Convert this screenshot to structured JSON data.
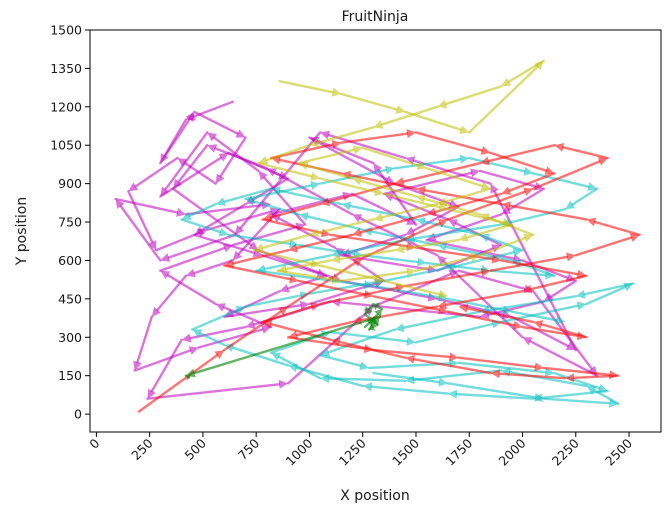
{
  "chart_data": {
    "type": "line",
    "title": "FruitNinja",
    "xlabel": "X position",
    "ylabel": "Y position",
    "xlim": [
      -30,
      2650
    ],
    "ylim": [
      -70,
      1500
    ],
    "x_ticks": [
      0,
      250,
      500,
      750,
      1000,
      1250,
      1500,
      1750,
      2000,
      2250,
      2500
    ],
    "y_ticks": [
      0,
      150,
      300,
      450,
      600,
      750,
      900,
      1050,
      1200,
      1350,
      1500
    ],
    "grid": false,
    "legend": "none",
    "arrows": true,
    "series": [
      {
        "color": "#bf00bf",
        "opacity": 0.55,
        "x": [
          640,
          420,
          300,
          460,
          700,
          560,
          380,
          150,
          280,
          520,
          860,
          640,
          420,
          260,
          180,
          480,
          820,
          560,
          300,
          640,
          980,
          760,
          520,
          300,
          620,
          900,
          700,
          460,
          780,
          1080,
          860,
          600,
          1000,
          1350,
          1120,
          820,
          1200,
          1500,
          1300,
          1000,
          1400,
          1700,
          1450,
          1150,
          1600,
          1900,
          1650,
          1350,
          1800,
          2100,
          1900,
          1550,
          2000,
          2250,
          2100,
          1800,
          1100,
          700,
          400,
          240,
          900,
          1300,
          1700,
          2050,
          2350,
          2000,
          1600,
          1200,
          800,
          520,
          360,
          760,
          1150,
          1600,
          1950,
          2250,
          1850,
          1450,
          1050,
          650,
          300,
          90,
          420,
          820
        ],
        "y": [
          1220,
          1150,
          980,
          1180,
          1080,
          900,
          1000,
          870,
          640,
          720,
          800,
          600,
          540,
          380,
          170,
          260,
          340,
          430,
          560,
          660,
          740,
          950,
          1100,
          850,
          1020,
          920,
          820,
          700,
          620,
          540,
          480,
          380,
          430,
          520,
          650,
          780,
          860,
          740,
          980,
          1080,
          900,
          810,
          700,
          620,
          560,
          660,
          760,
          860,
          950,
          880,
          780,
          680,
          600,
          520,
          440,
          380,
          440,
          340,
          290,
          60,
          120,
          420,
          560,
          480,
          150,
          300,
          620,
          780,
          960,
          1050,
          880,
          640,
          520,
          450,
          380,
          250,
          900,
          1000,
          1100,
          700,
          600,
          840,
          780,
          820
        ]
      },
      {
        "color": "#00bfbf",
        "opacity": 0.55,
        "x": [
          1300,
          1650,
          2100,
          2450,
          2300,
          1900,
          1450,
          1050,
          820,
          1100,
          1500,
          1900,
          2300,
          2520,
          2250,
          1800,
          1400,
          1050,
          1280,
          1700,
          2150,
          2400,
          2050,
          1650,
          1250,
          900,
          600,
          450,
          700,
          1000,
          1350,
          1700,
          2000,
          1800,
          1500,
          1150,
          820,
          560,
          400,
          620,
          950,
          1250,
          1550,
          1850,
          2150,
          1950,
          1600,
          1250,
          950,
          700,
          1050,
          1400,
          1750,
          2050,
          2350,
          2200,
          1900,
          1450,
          1100,
          750,
          1300,
          1650,
          1950,
          2200
        ],
        "y": [
          160,
          120,
          60,
          40,
          110,
          170,
          130,
          140,
          240,
          320,
          280,
          360,
          430,
          510,
          460,
          400,
          330,
          230,
          180,
          200,
          160,
          90,
          60,
          80,
          110,
          190,
          270,
          330,
          420,
          470,
          520,
          580,
          640,
          700,
          760,
          820,
          880,
          820,
          760,
          700,
          660,
          620,
          590,
          560,
          540,
          600,
          660,
          720,
          780,
          840,
          900,
          960,
          1000,
          940,
          880,
          800,
          740,
          680,
          620,
          560,
          500,
          450,
          400,
          360
        ]
      },
      {
        "color": "#ff0000",
        "opacity": 0.55,
        "x": [
          200,
          600,
          900,
          1250,
          1650,
          2050,
          2400,
          2150,
          1800,
          1400,
          1050,
          780,
          1100,
          1500,
          1900,
          2300,
          2000,
          1600,
          1200,
          900,
          1300,
          1700,
          2100,
          2450,
          2200,
          1850,
          1450,
          1100,
          780,
          1050,
          1450,
          1850,
          2250,
          2550,
          2300,
          1900,
          1500,
          1150,
          820,
          1150,
          1500,
          1850,
          2150,
          1900,
          1550,
          1200,
          900,
          600,
          950,
          1300,
          1650,
          2000,
          2300,
          2050,
          1700
        ],
        "y": [
          10,
          250,
          420,
          610,
          760,
          880,
          1000,
          1050,
          980,
          900,
          820,
          760,
          700,
          650,
          600,
          540,
          480,
          420,
          360,
          300,
          250,
          220,
          180,
          150,
          140,
          160,
          220,
          290,
          360,
          430,
          500,
          560,
          620,
          700,
          760,
          820,
          880,
          940,
          1000,
          1060,
          1100,
          1020,
          940,
          860,
          780,
          700,
          640,
          580,
          520,
          460,
          400,
          340,
          300,
          360,
          420
        ]
      },
      {
        "color": "#bfbf00",
        "opacity": 0.55,
        "x": [
          860,
          1150,
          1450,
          1750,
          2100,
          1900,
          1600,
          1300,
          1000,
          760,
          1050,
          1350,
          1650,
          1950,
          1700,
          1400,
          1100,
          850,
          1150,
          1500,
          1800,
          2050,
          1800,
          1500,
          1200,
          950,
          1250,
          1550,
          1850,
          1600,
          1300,
          1000,
          740,
          1050,
          1350,
          1650
        ],
        "y": [
          1300,
          1250,
          1180,
          1100,
          1380,
          1280,
          1200,
          1120,
          1050,
          980,
          920,
          860,
          800,
          740,
          680,
          640,
          600,
          560,
          520,
          560,
          620,
          700,
          780,
          850,
          920,
          980,
          1040,
          960,
          880,
          820,
          760,
          700,
          640,
          580,
          520,
          460
        ]
      },
      {
        "color": "#008000",
        "opacity": 0.6,
        "x": [
          1260,
          1300,
          1340,
          1300,
          1260,
          1320,
          1280,
          1330,
          420,
          440
        ],
        "y": [
          340,
          370,
          410,
          430,
          390,
          350,
          330,
          380,
          150,
          140
        ]
      }
    ]
  }
}
